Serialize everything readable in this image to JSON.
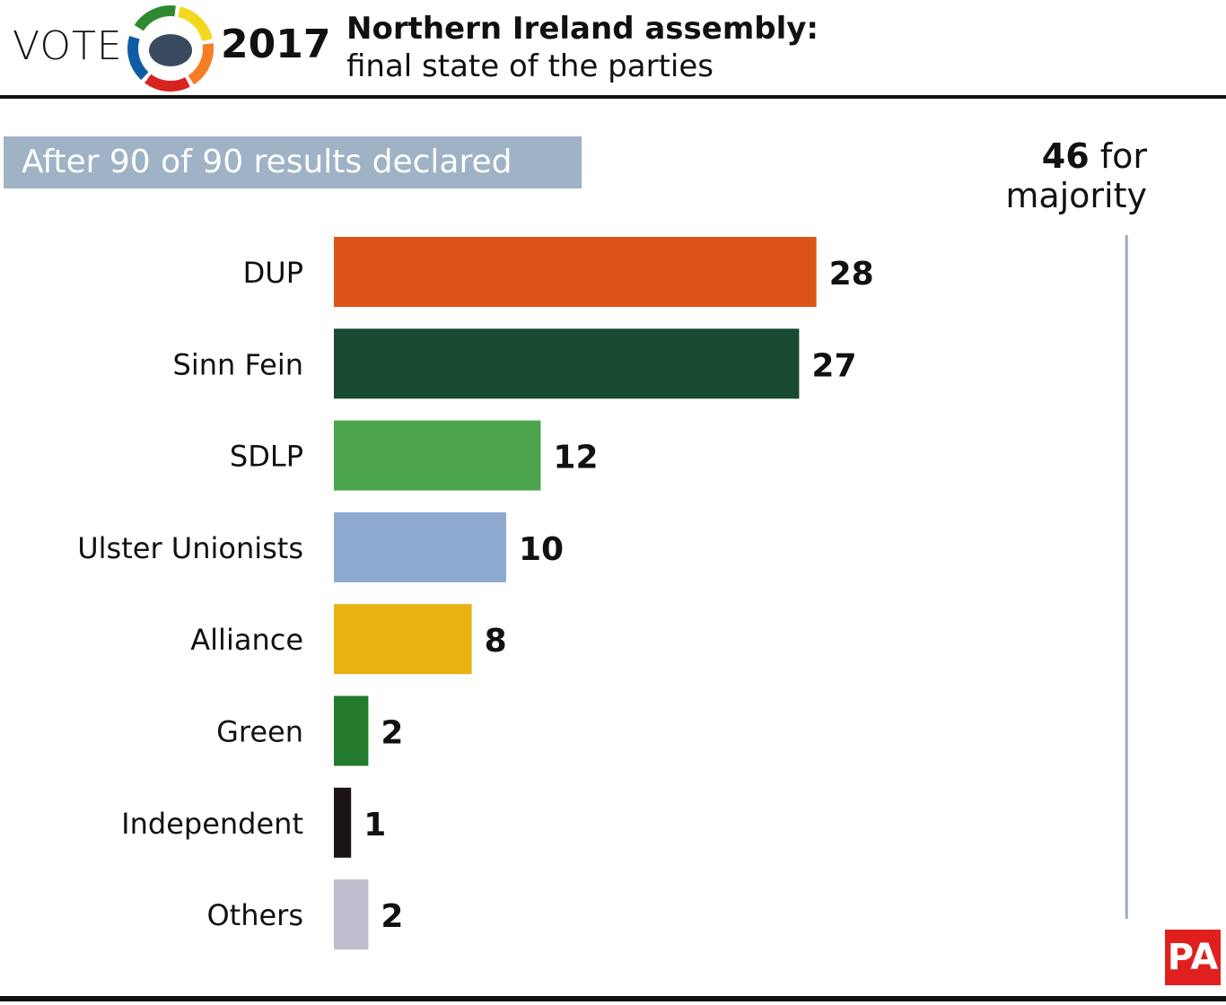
{
  "header": {
    "vote": "VOTE",
    "year": "2017",
    "title": "Northern Ireland assembly:",
    "subtitle": "final state of the parties",
    "logo_colors": [
      "#2f8a2f",
      "#f2d91f",
      "#f47d26",
      "#d9231f",
      "#0f5ca4"
    ]
  },
  "banner": "After 90 of 90 results declared",
  "majority": {
    "value": "46",
    "text": "for",
    "text2": "majority"
  },
  "brand": "PA",
  "chart_data": {
    "type": "bar",
    "orientation": "horizontal",
    "categories": [
      "DUP",
      "Sinn Fein",
      "SDLP",
      "Ulster Unionists",
      "Alliance",
      "Green",
      "Independent",
      "Others"
    ],
    "values": [
      28,
      27,
      12,
      10,
      8,
      2,
      1,
      2
    ],
    "colors": [
      "#dc5417",
      "#184a32",
      "#4aa54c",
      "#8faad0",
      "#e8b212",
      "#237b2e",
      "#1a1414",
      "#bfbccb"
    ],
    "reference_line": {
      "value": 46,
      "color": "#9aaabb"
    },
    "xlim": [
      0,
      48
    ],
    "grid": false
  }
}
